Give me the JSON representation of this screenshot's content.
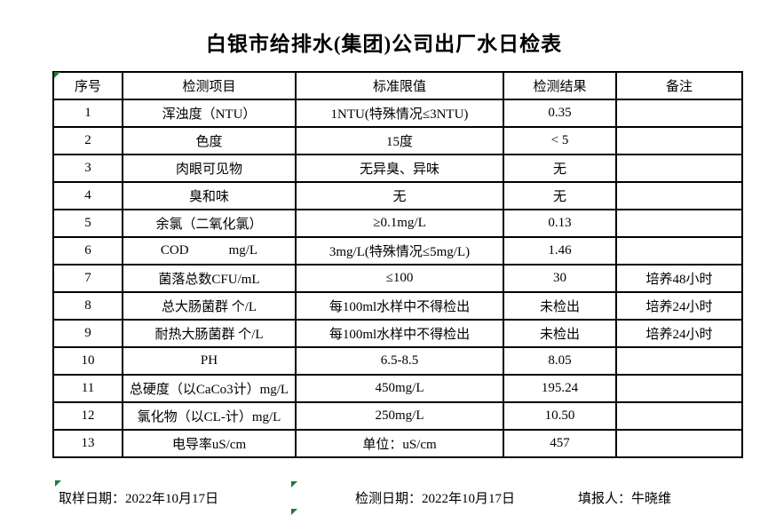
{
  "title": "白银市给排水(集团)公司出厂水日检表",
  "table": {
    "headers": [
      "序号",
      "检测项目",
      "标准限值",
      "检测结果",
      "备注"
    ],
    "rows": [
      {
        "no": "1",
        "item": "浑浊度（NTU）",
        "limit": "1NTU(特殊情况≤3NTU)",
        "result": "0.35",
        "note": ""
      },
      {
        "no": "2",
        "item": "色度",
        "limit": "15度",
        "result": "< 5",
        "note": ""
      },
      {
        "no": "3",
        "item": "肉眼可见物",
        "limit": "无异臭、异味",
        "result": "无",
        "note": ""
      },
      {
        "no": "4",
        "item": "臭和味",
        "limit": "无",
        "result": "无",
        "note": ""
      },
      {
        "no": "5",
        "item": "余氯（二氧化氯）",
        "limit": "≥0.1mg/L",
        "result": "0.13",
        "note": ""
      },
      {
        "no": "6",
        "item": "COD            mg/L",
        "limit": "3mg/L(特殊情况≤5mg/L)",
        "result": "1.46",
        "note": ""
      },
      {
        "no": "7",
        "item": "菌落总数CFU/mL",
        "limit": "≤100",
        "result": "30",
        "note": "培养48小时"
      },
      {
        "no": "8",
        "item": "总大肠菌群 个/L",
        "limit": "每100ml水样中不得检出",
        "result": "未检出",
        "note": "培养24小时"
      },
      {
        "no": "9",
        "item": "耐热大肠菌群 个/L",
        "limit": "每100ml水样中不得检出",
        "result": "未检出",
        "note": "培养24小时"
      },
      {
        "no": "10",
        "item": "PH",
        "limit": "6.5-8.5",
        "result": "8.05",
        "note": ""
      },
      {
        "no": "11",
        "item": "总硬度（以CaCo3计）mg/L",
        "limit": "450mg/L",
        "result": "195.24",
        "note": ""
      },
      {
        "no": "12",
        "item": "氯化物（以CL-计）mg/L",
        "limit": "250mg/L",
        "result": "10.50",
        "note": ""
      },
      {
        "no": "13",
        "item": "电导率uS/cm",
        "limit": "单位：uS/cm",
        "result": "457",
        "note": ""
      }
    ]
  },
  "footer": {
    "sample_date": "取样日期：2022年10月17日",
    "test_date": "检测日期：2022年10月17日",
    "reporter": "填报人：牛晓维"
  },
  "colors": {
    "marker_green": "#1e7b34",
    "border_black": "#000000",
    "background": "#ffffff"
  }
}
